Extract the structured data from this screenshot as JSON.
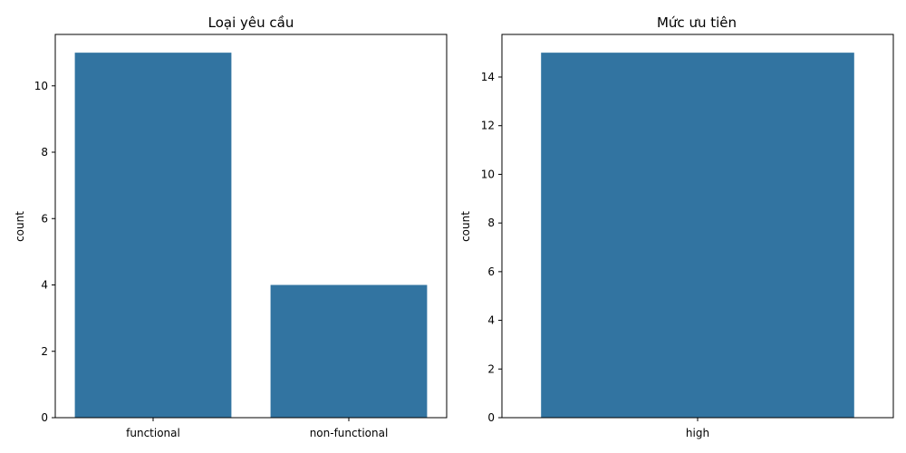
{
  "chart_data": [
    {
      "type": "bar",
      "title": "Loại yêu cầu",
      "xlabel": "",
      "ylabel": "count",
      "categories": [
        "functional",
        "non-functional"
      ],
      "values": [
        11,
        4
      ],
      "ylim": [
        0,
        11.55
      ],
      "yticks": [
        0,
        2,
        4,
        6,
        8,
        10
      ],
      "grid": false,
      "color": "#3274a1"
    },
    {
      "type": "bar",
      "title": "Mức ưu tiên",
      "xlabel": "",
      "ylabel": "count",
      "categories": [
        "high"
      ],
      "values": [
        15
      ],
      "ylim": [
        0,
        15.75
      ],
      "yticks": [
        0,
        2,
        4,
        6,
        8,
        10,
        12,
        14
      ],
      "grid": false,
      "color": "#3274a1"
    }
  ]
}
